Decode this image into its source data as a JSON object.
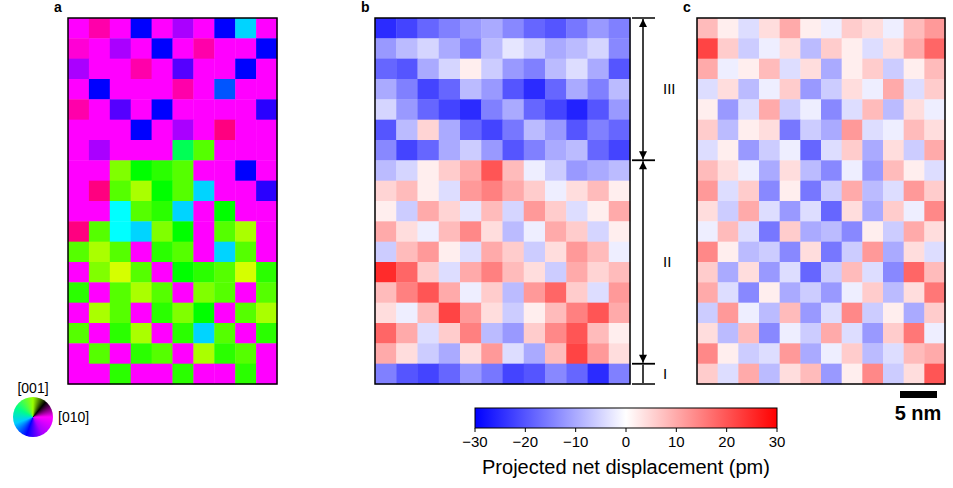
{
  "chart_data": {
    "type": "heatmap",
    "panels": [
      {
        "type": "orientation_map",
        "label": "a",
        "color_key": [
          "[001]",
          "[010]"
        ],
        "cells": [
          [
            300,
            320,
            300,
            240,
            300,
            280,
            300,
            240,
            190,
            300
          ],
          [
            310,
            300,
            280,
            300,
            240,
            300,
            320,
            300,
            300,
            240
          ],
          [
            280,
            300,
            300,
            320,
            300,
            260,
            300,
            300,
            240,
            300
          ],
          [
            300,
            240,
            300,
            300,
            300,
            320,
            300,
            220,
            300,
            300
          ],
          [
            320,
            300,
            260,
            300,
            240,
            300,
            300,
            300,
            300,
            250
          ],
          [
            300,
            300,
            300,
            240,
            300,
            280,
            300,
            330,
            300,
            300
          ],
          [
            300,
            280,
            300,
            300,
            300,
            140,
            100,
            300,
            300,
            300
          ],
          [
            300,
            300,
            90,
            120,
            110,
            100,
            300,
            300,
            240,
            300
          ],
          [
            300,
            330,
            100,
            80,
            120,
            100,
            190,
            300,
            300,
            250
          ],
          [
            300,
            300,
            180,
            100,
            110,
            190,
            300,
            120,
            300,
            300
          ],
          [
            330,
            100,
            180,
            190,
            90,
            120,
            300,
            100,
            80,
            300
          ],
          [
            100,
            80,
            100,
            300,
            110,
            100,
            300,
            190,
            100,
            300
          ],
          [
            300,
            90,
            70,
            100,
            300,
            120,
            110,
            100,
            70,
            110
          ],
          [
            110,
            300,
            100,
            80,
            100,
            300,
            90,
            100,
            300,
            100
          ],
          [
            300,
            80,
            100,
            300,
            110,
            90,
            120,
            300,
            100,
            80
          ],
          [
            100,
            300,
            110,
            80,
            300,
            110,
            190,
            100,
            300,
            110
          ],
          [
            300,
            100,
            300,
            110,
            100,
            300,
            80,
            110,
            100,
            300
          ],
          [
            300,
            300,
            110,
            300,
            300,
            110,
            300,
            300,
            110,
            300
          ]
        ]
      },
      {
        "type": "displacement_map",
        "label": "b",
        "annotations": [
          {
            "text": "III",
            "rows": [
              0,
              7
            ]
          },
          {
            "text": "II",
            "rows": [
              7,
              17
            ]
          },
          {
            "text": "I",
            "rows": [
              17,
              18
            ]
          }
        ],
        "cells": [
          [
            -25,
            -22,
            -18,
            -15,
            -12,
            -10,
            -14,
            -18,
            -20,
            -16,
            -12,
            -15
          ],
          [
            -12,
            -8,
            -5,
            -10,
            -15,
            -8,
            -3,
            -6,
            -10,
            -8,
            -5,
            -14
          ],
          [
            -18,
            -20,
            -10,
            -5,
            2,
            -6,
            -12,
            -15,
            -8,
            -4,
            -10,
            -20
          ],
          [
            -10,
            -15,
            -22,
            -18,
            -8,
            -12,
            -20,
            -25,
            -18,
            -10,
            -15,
            -8
          ],
          [
            -5,
            -12,
            -18,
            -22,
            -25,
            -15,
            -10,
            -18,
            -22,
            -26,
            -20,
            -12
          ],
          [
            -20,
            -8,
            5,
            -10,
            -18,
            -22,
            -16,
            -8,
            -12,
            -20,
            -15,
            -18
          ],
          [
            -14,
            -22,
            -18,
            -10,
            -6,
            -12,
            -20,
            -15,
            -10,
            -8,
            -18,
            -22
          ],
          [
            -8,
            -5,
            2,
            6,
            10,
            20,
            8,
            -2,
            -6,
            -12,
            -10,
            -8
          ],
          [
            5,
            8,
            2,
            -4,
            12,
            15,
            10,
            6,
            -2,
            4,
            8,
            2
          ],
          [
            2,
            -6,
            10,
            5,
            -3,
            8,
            -5,
            12,
            6,
            -4,
            2,
            10
          ],
          [
            10,
            4,
            -2,
            8,
            14,
            4,
            -8,
            -2,
            10,
            6,
            -5,
            2
          ],
          [
            -6,
            8,
            12,
            2,
            -4,
            10,
            6,
            -6,
            4,
            12,
            8,
            -2
          ],
          [
            25,
            18,
            6,
            -4,
            10,
            15,
            8,
            4,
            -6,
            10,
            5,
            8
          ],
          [
            8,
            15,
            20,
            10,
            -2,
            6,
            -8,
            12,
            18,
            6,
            -4,
            12
          ],
          [
            4,
            -2,
            8,
            22,
            12,
            4,
            -6,
            2,
            8,
            15,
            20,
            10
          ],
          [
            18,
            10,
            -4,
            6,
            15,
            -8,
            -12,
            6,
            14,
            20,
            8,
            2
          ],
          [
            10,
            4,
            -6,
            -10,
            4,
            12,
            -4,
            -10,
            8,
            22,
            12,
            4
          ],
          [
            -15,
            -20,
            -22,
            -18,
            -12,
            -16,
            -22,
            -20,
            -14,
            -18,
            -25,
            -15
          ]
        ]
      },
      {
        "type": "displacement_map",
        "label": "c",
        "cells": [
          [
            8,
            2,
            -4,
            4,
            10,
            2,
            -2,
            6,
            4,
            -2,
            8,
            12
          ],
          [
            22,
            6,
            -6,
            -2,
            4,
            -8,
            6,
            2,
            -4,
            4,
            10,
            18
          ],
          [
            10,
            -2,
            2,
            8,
            -4,
            4,
            -10,
            2,
            6,
            -6,
            2,
            8
          ],
          [
            -4,
            4,
            -8,
            -2,
            6,
            -12,
            -6,
            4,
            -2,
            10,
            -4,
            6
          ],
          [
            2,
            -12,
            -4,
            10,
            -6,
            -2,
            -14,
            -4,
            8,
            -8,
            4,
            -2
          ],
          [
            6,
            -8,
            2,
            4,
            -16,
            -6,
            -10,
            12,
            -4,
            -2,
            8,
            4
          ],
          [
            -4,
            2,
            -12,
            -6,
            -2,
            -18,
            -4,
            6,
            -10,
            4,
            -6,
            10
          ],
          [
            8,
            4,
            -2,
            -10,
            4,
            -8,
            -14,
            -2,
            -12,
            8,
            2,
            -4
          ],
          [
            12,
            -4,
            6,
            -14,
            2,
            -16,
            -6,
            10,
            -8,
            -4,
            12,
            6
          ],
          [
            4,
            -6,
            10,
            -4,
            -12,
            -4,
            -18,
            4,
            -10,
            6,
            -2,
            14
          ],
          [
            -2,
            8,
            -4,
            -16,
            6,
            -10,
            -8,
            -14,
            2,
            -6,
            10,
            4
          ],
          [
            14,
            2,
            -8,
            -6,
            -14,
            4,
            -16,
            -6,
            12,
            -10,
            4,
            -4
          ],
          [
            6,
            -10,
            4,
            -12,
            -4,
            -18,
            -6,
            8,
            -4,
            -14,
            18,
            8
          ],
          [
            10,
            -4,
            -14,
            2,
            -10,
            -6,
            -12,
            -2,
            6,
            -8,
            4,
            16
          ],
          [
            -6,
            12,
            -2,
            -8,
            8,
            -12,
            -4,
            14,
            -6,
            2,
            -10,
            6
          ],
          [
            4,
            -8,
            8,
            -14,
            -2,
            -6,
            10,
            -4,
            -12,
            6,
            16,
            -2
          ],
          [
            14,
            2,
            -6,
            -4,
            12,
            -10,
            -2,
            6,
            -8,
            -4,
            8,
            10
          ],
          [
            6,
            -4,
            10,
            -8,
            4,
            8,
            -12,
            2,
            14,
            -6,
            4,
            20
          ]
        ]
      }
    ],
    "colorbar": {
      "range": [
        -30,
        30
      ],
      "ticks": [
        {
          "value": -30,
          "label": "−30"
        },
        {
          "value": -20,
          "label": "−20"
        },
        {
          "value": -10,
          "label": "−10"
        },
        0,
        10,
        20,
        30
      ],
      "label": "Projected net displacement (pm)"
    },
    "scale_bar": "5 nm"
  }
}
